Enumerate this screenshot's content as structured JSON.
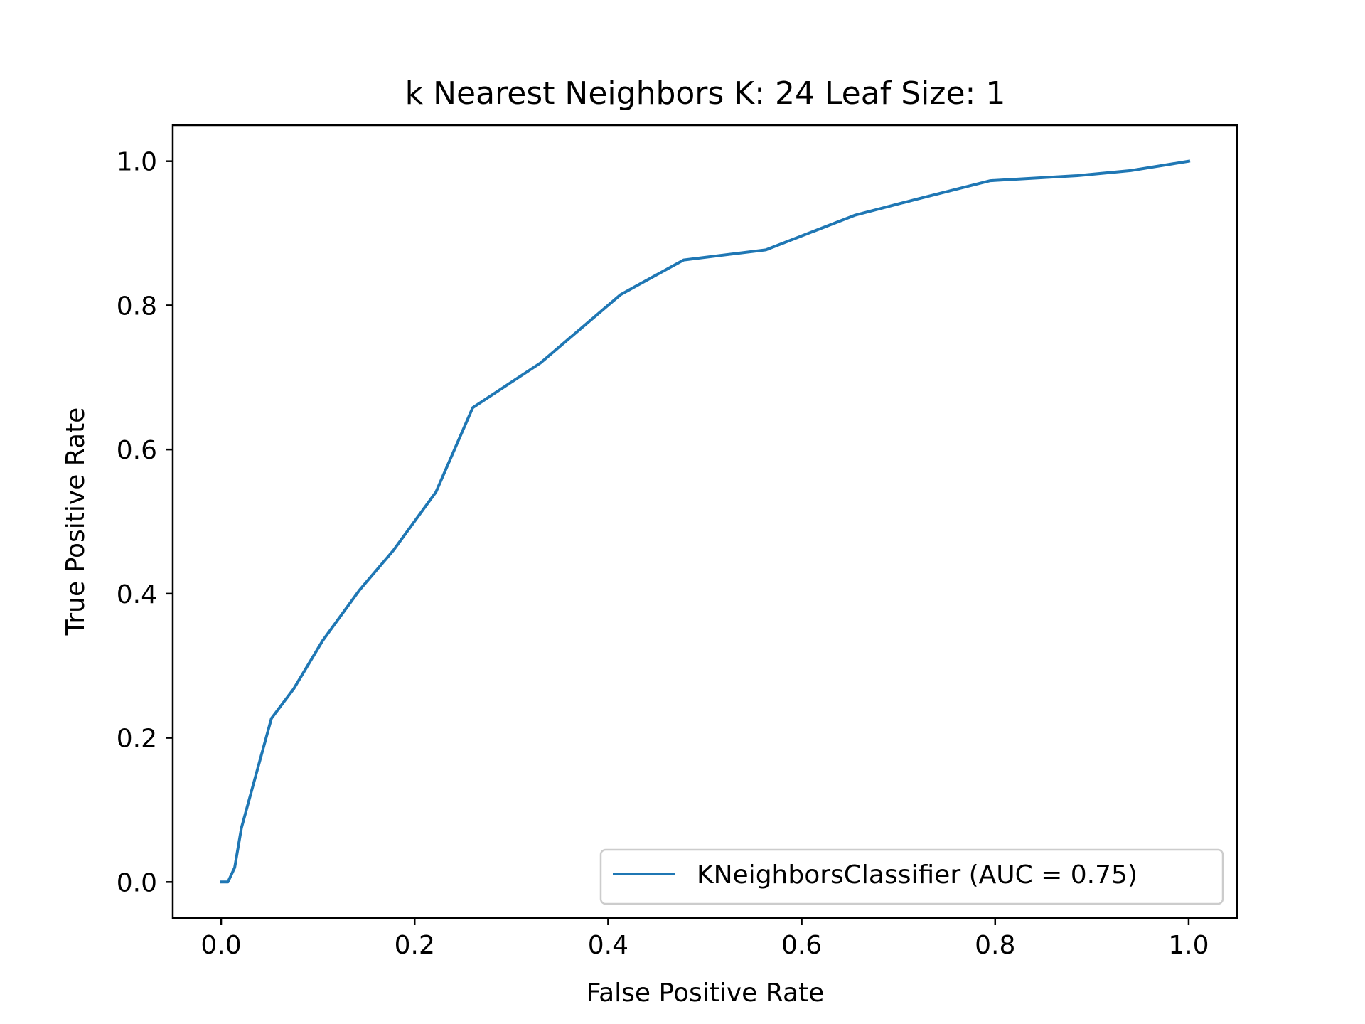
{
  "colors": {
    "series": "#1f77b4",
    "axes": "#000000",
    "background": "#ffffff",
    "legend_border": "#cccccc"
  },
  "chart_data": {
    "type": "line",
    "title": "k Nearest Neighbors K: 24 Leaf Size: 1",
    "xlabel": "False Positive Rate",
    "ylabel": "True Positive Rate",
    "xlim": [
      -0.05,
      1.05
    ],
    "ylim": [
      -0.05,
      1.05
    ],
    "xticks": [
      0.0,
      0.2,
      0.4,
      0.6,
      0.8,
      1.0
    ],
    "xtick_labels": [
      "0.0",
      "0.2",
      "0.4",
      "0.6",
      "0.8",
      "1.0"
    ],
    "yticks": [
      0.0,
      0.2,
      0.4,
      0.6,
      0.8,
      1.0
    ],
    "ytick_labels": [
      "0.0",
      "0.2",
      "0.4",
      "0.6",
      "0.8",
      "1.0"
    ],
    "grid": false,
    "legend_position": "bottom-right",
    "series": [
      {
        "name": "KNeighborsClassifier (AUC = 0.75)",
        "x": [
          0.0,
          0.007,
          0.014,
          0.021,
          0.052,
          0.075,
          0.105,
          0.143,
          0.178,
          0.222,
          0.26,
          0.33,
          0.413,
          0.478,
          0.563,
          0.655,
          0.718,
          0.795,
          0.885,
          0.94,
          1.0
        ],
        "y": [
          0.0,
          0.0,
          0.02,
          0.075,
          0.227,
          0.268,
          0.335,
          0.405,
          0.46,
          0.541,
          0.658,
          0.72,
          0.815,
          0.863,
          0.877,
          0.925,
          0.947,
          0.973,
          0.98,
          0.987,
          1.0
        ]
      }
    ]
  }
}
